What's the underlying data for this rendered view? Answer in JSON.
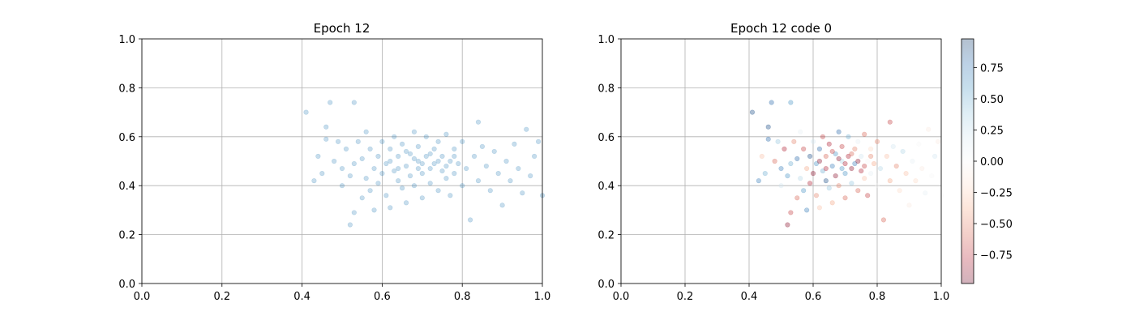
{
  "chart_data": [
    {
      "type": "scatter",
      "title": "Epoch 12",
      "xlim": [
        0.0,
        1.0
      ],
      "ylim": [
        0.0,
        1.0
      ],
      "xticks": [
        "0.0",
        "0.2",
        "0.4",
        "0.6",
        "0.8",
        "1.0"
      ],
      "yticks": [
        "0.0",
        "0.2",
        "0.4",
        "0.6",
        "0.8",
        "1.0"
      ],
      "grid": true,
      "marker_color": "#1f77b4",
      "marker_alpha": 0.25,
      "points": [
        [
          0.41,
          0.7
        ],
        [
          0.47,
          0.74
        ],
        [
          0.53,
          0.74
        ],
        [
          0.46,
          0.64
        ],
        [
          0.43,
          0.42
        ],
        [
          0.45,
          0.45
        ],
        [
          0.44,
          0.52
        ],
        [
          0.46,
          0.59
        ],
        [
          0.48,
          0.5
        ],
        [
          0.49,
          0.58
        ],
        [
          0.5,
          0.47
        ],
        [
          0.5,
          0.4
        ],
        [
          0.51,
          0.55
        ],
        [
          0.52,
          0.44
        ],
        [
          0.52,
          0.24
        ],
        [
          0.53,
          0.29
        ],
        [
          0.53,
          0.49
        ],
        [
          0.54,
          0.58
        ],
        [
          0.55,
          0.51
        ],
        [
          0.55,
          0.35
        ],
        [
          0.56,
          0.43
        ],
        [
          0.56,
          0.62
        ],
        [
          0.57,
          0.55
        ],
        [
          0.57,
          0.38
        ],
        [
          0.58,
          0.47
        ],
        [
          0.58,
          0.3
        ],
        [
          0.59,
          0.52
        ],
        [
          0.59,
          0.41
        ],
        [
          0.6,
          0.58
        ],
        [
          0.6,
          0.45
        ],
        [
          0.61,
          0.49
        ],
        [
          0.61,
          0.36
        ],
        [
          0.62,
          0.55
        ],
        [
          0.62,
          0.31
        ],
        [
          0.63,
          0.46
        ],
        [
          0.63,
          0.6
        ],
        [
          0.64,
          0.42
        ],
        [
          0.64,
          0.52
        ],
        [
          0.65,
          0.39
        ],
        [
          0.65,
          0.57
        ],
        [
          0.66,
          0.48
        ],
        [
          0.66,
          0.33
        ],
        [
          0.67,
          0.53
        ],
        [
          0.67,
          0.44
        ],
        [
          0.68,
          0.62
        ],
        [
          0.68,
          0.4
        ],
        [
          0.69,
          0.5
        ],
        [
          0.69,
          0.56
        ],
        [
          0.7,
          0.45
        ],
        [
          0.7,
          0.35
        ],
        [
          0.71,
          0.52
        ],
        [
          0.71,
          0.6
        ],
        [
          0.72,
          0.47
        ],
        [
          0.72,
          0.41
        ],
        [
          0.73,
          0.55
        ],
        [
          0.73,
          0.49
        ],
        [
          0.74,
          0.38
        ],
        [
          0.74,
          0.58
        ],
        [
          0.75,
          0.46
        ],
        [
          0.75,
          0.52
        ],
        [
          0.76,
          0.43
        ],
        [
          0.76,
          0.61
        ],
        [
          0.77,
          0.5
        ],
        [
          0.77,
          0.36
        ],
        [
          0.78,
          0.55
        ],
        [
          0.78,
          0.45
        ],
        [
          0.79,
          0.49
        ],
        [
          0.8,
          0.4
        ],
        [
          0.8,
          0.58
        ],
        [
          0.81,
          0.47
        ],
        [
          0.82,
          0.26
        ],
        [
          0.83,
          0.52
        ],
        [
          0.84,
          0.66
        ],
        [
          0.84,
          0.42
        ],
        [
          0.85,
          0.56
        ],
        [
          0.86,
          0.48
        ],
        [
          0.87,
          0.38
        ],
        [
          0.88,
          0.54
        ],
        [
          0.89,
          0.45
        ],
        [
          0.9,
          0.32
        ],
        [
          0.91,
          0.5
        ],
        [
          0.92,
          0.42
        ],
        [
          0.93,
          0.57
        ],
        [
          0.94,
          0.47
        ],
        [
          0.95,
          0.37
        ],
        [
          0.96,
          0.63
        ],
        [
          0.97,
          0.44
        ],
        [
          0.98,
          0.52
        ],
        [
          0.99,
          0.58
        ],
        [
          1.0,
          0.36
        ],
        [
          0.62,
          0.5
        ],
        [
          0.64,
          0.47
        ],
        [
          0.66,
          0.54
        ],
        [
          0.68,
          0.51
        ],
        [
          0.7,
          0.49
        ],
        [
          0.72,
          0.53
        ],
        [
          0.74,
          0.5
        ],
        [
          0.76,
          0.48
        ],
        [
          0.78,
          0.52
        ],
        [
          0.69,
          0.47
        ]
      ]
    },
    {
      "type": "scatter",
      "title": "Epoch 12 code 0",
      "xlim": [
        0.0,
        1.0
      ],
      "ylim": [
        0.0,
        1.0
      ],
      "xticks": [
        "0.0",
        "0.2",
        "0.4",
        "0.6",
        "0.8",
        "1.0"
      ],
      "yticks": [
        "0.0",
        "0.2",
        "0.4",
        "0.6",
        "0.8",
        "1.0"
      ],
      "grid": true,
      "marker_alpha": 0.35,
      "colormap": "RdBu",
      "colorbar": {
        "range": [
          -0.98,
          0.98
        ],
        "ticks": [
          "0.75",
          "0.50",
          "0.25",
          "0.00",
          "−0.25",
          "−0.50",
          "−0.75"
        ],
        "tick_values": [
          0.75,
          0.5,
          0.25,
          0.0,
          -0.25,
          -0.5,
          -0.75
        ]
      },
      "points": [
        [
          0.41,
          0.7,
          0.9
        ],
        [
          0.47,
          0.74,
          0.8
        ],
        [
          0.53,
          0.74,
          0.6
        ],
        [
          0.46,
          0.64,
          0.9
        ],
        [
          0.43,
          0.42,
          0.7
        ],
        [
          0.45,
          0.45,
          0.5
        ],
        [
          0.44,
          0.52,
          -0.3
        ],
        [
          0.46,
          0.59,
          0.8
        ],
        [
          0.48,
          0.5,
          -0.6
        ],
        [
          0.49,
          0.58,
          0.4
        ],
        [
          0.5,
          0.47,
          0.7
        ],
        [
          0.5,
          0.4,
          0.2
        ],
        [
          0.51,
          0.55,
          -0.8
        ],
        [
          0.52,
          0.44,
          0.6
        ],
        [
          0.52,
          0.24,
          -0.9
        ],
        [
          0.53,
          0.29,
          -0.7
        ],
        [
          0.53,
          0.49,
          0.5
        ],
        [
          0.54,
          0.58,
          -0.5
        ],
        [
          0.55,
          0.51,
          0.8
        ],
        [
          0.55,
          0.35,
          -0.6
        ],
        [
          0.56,
          0.43,
          0.3
        ],
        [
          0.56,
          0.62,
          0.1
        ],
        [
          0.57,
          0.55,
          -0.7
        ],
        [
          0.57,
          0.38,
          0.6
        ],
        [
          0.58,
          0.47,
          -0.4
        ],
        [
          0.58,
          0.3,
          0.7
        ],
        [
          0.59,
          0.52,
          0.9
        ],
        [
          0.59,
          0.41,
          -0.8
        ],
        [
          0.6,
          0.58,
          0.2
        ],
        [
          0.6,
          0.45,
          -0.9
        ],
        [
          0.61,
          0.49,
          0.6
        ],
        [
          0.61,
          0.36,
          -0.5
        ],
        [
          0.62,
          0.55,
          0.8
        ],
        [
          0.62,
          0.31,
          -0.3
        ],
        [
          0.63,
          0.46,
          0.5
        ],
        [
          0.63,
          0.6,
          -0.7
        ],
        [
          0.64,
          0.42,
          0.9
        ],
        [
          0.64,
          0.52,
          -0.6
        ],
        [
          0.65,
          0.39,
          0.4
        ],
        [
          0.65,
          0.57,
          -0.8
        ],
        [
          0.66,
          0.48,
          0.7
        ],
        [
          0.66,
          0.33,
          -0.4
        ],
        [
          0.67,
          0.53,
          0.6
        ],
        [
          0.67,
          0.44,
          -0.9
        ],
        [
          0.68,
          0.62,
          0.8
        ],
        [
          0.68,
          0.4,
          -0.5
        ],
        [
          0.69,
          0.5,
          0.3
        ],
        [
          0.69,
          0.56,
          -0.7
        ],
        [
          0.7,
          0.45,
          0.6
        ],
        [
          0.7,
          0.35,
          -0.6
        ],
        [
          0.71,
          0.52,
          -0.8
        ],
        [
          0.71,
          0.6,
          0.5
        ],
        [
          0.72,
          0.47,
          -0.9
        ],
        [
          0.72,
          0.41,
          0.4
        ],
        [
          0.73,
          0.55,
          -0.5
        ],
        [
          0.73,
          0.49,
          0.7
        ],
        [
          0.74,
          0.38,
          -0.6
        ],
        [
          0.74,
          0.58,
          0.1
        ],
        [
          0.75,
          0.46,
          -0.8
        ],
        [
          0.75,
          0.52,
          0.2
        ],
        [
          0.76,
          0.43,
          -0.3
        ],
        [
          0.76,
          0.61,
          -0.6
        ],
        [
          0.77,
          0.5,
          0.0
        ],
        [
          0.77,
          0.36,
          -0.7
        ],
        [
          0.78,
          0.55,
          -0.2
        ],
        [
          0.78,
          0.45,
          0.1
        ],
        [
          0.79,
          0.49,
          -0.4
        ],
        [
          0.8,
          0.4,
          0.0
        ],
        [
          0.8,
          0.58,
          -0.5
        ],
        [
          0.81,
          0.47,
          0.3
        ],
        [
          0.82,
          0.26,
          -0.6
        ],
        [
          0.83,
          0.52,
          -0.3
        ],
        [
          0.84,
          0.66,
          -0.7
        ],
        [
          0.84,
          0.42,
          -0.4
        ],
        [
          0.85,
          0.56,
          0.2
        ],
        [
          0.86,
          0.48,
          -0.5
        ],
        [
          0.87,
          0.38,
          -0.2
        ],
        [
          0.88,
          0.54,
          0.3
        ],
        [
          0.89,
          0.45,
          -0.3
        ],
        [
          0.9,
          0.32,
          -0.1
        ],
        [
          0.91,
          0.5,
          0.1
        ],
        [
          0.92,
          0.42,
          -0.2
        ],
        [
          0.93,
          0.57,
          0.0
        ],
        [
          0.94,
          0.47,
          -0.1
        ],
        [
          0.95,
          0.37,
          0.1
        ],
        [
          0.96,
          0.63,
          -0.1
        ],
        [
          0.97,
          0.44,
          0.0
        ],
        [
          0.98,
          0.52,
          0.2
        ],
        [
          0.99,
          0.58,
          -0.1
        ],
        [
          1.0,
          0.36,
          0.0
        ],
        [
          0.62,
          0.5,
          -0.9
        ],
        [
          0.64,
          0.47,
          -0.8
        ],
        [
          0.66,
          0.54,
          -0.7
        ],
        [
          0.68,
          0.51,
          -0.9
        ],
        [
          0.7,
          0.49,
          -0.8
        ],
        [
          0.72,
          0.53,
          -0.6
        ],
        [
          0.74,
          0.5,
          -0.9
        ],
        [
          0.76,
          0.48,
          -0.7
        ],
        [
          0.78,
          0.52,
          -0.5
        ],
        [
          0.69,
          0.47,
          0.6
        ]
      ]
    }
  ]
}
